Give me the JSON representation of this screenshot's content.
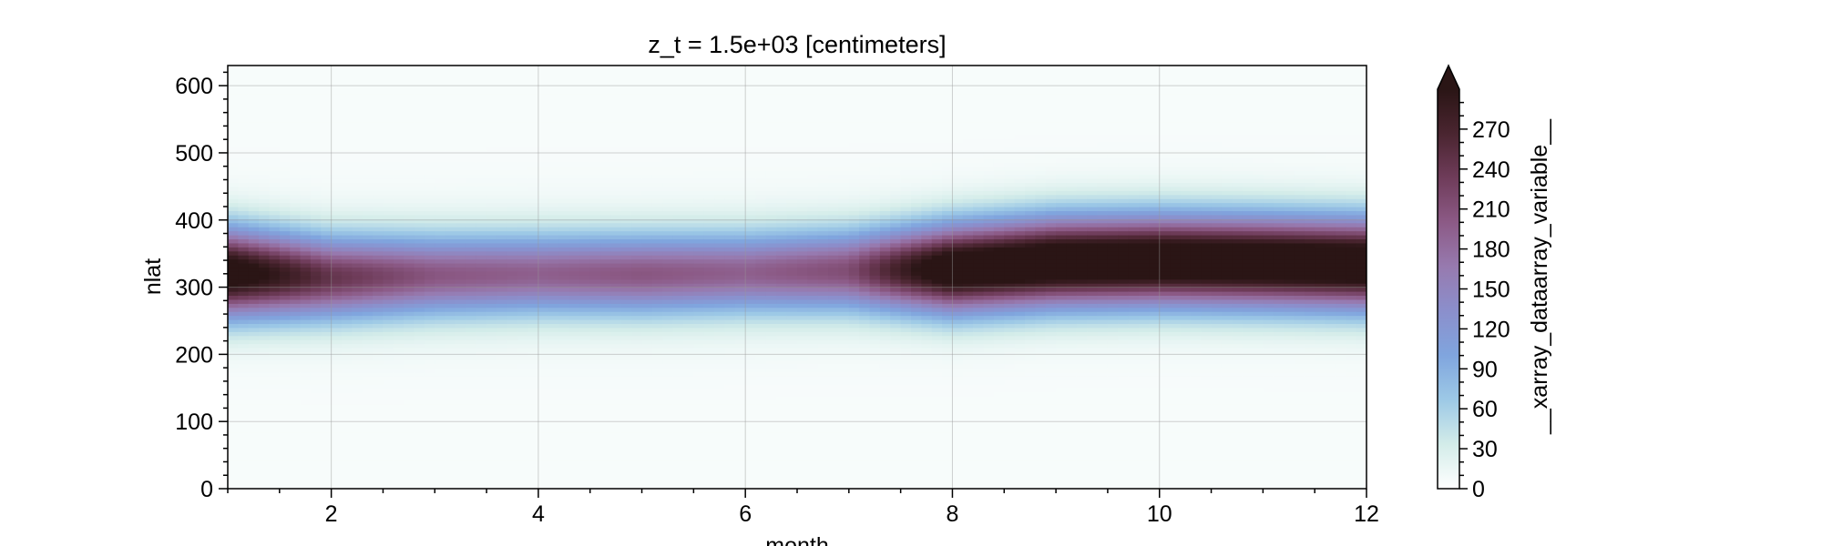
{
  "chart_data": {
    "type": "heatmap",
    "title": "z_t = 1.5e+03 [centimeters]",
    "xlabel": "month",
    "ylabel": "nlat",
    "xlim": [
      1,
      12
    ],
    "ylim": [
      0,
      630
    ],
    "x_ticks": [
      2,
      4,
      6,
      8,
      10,
      12
    ],
    "y_ticks": [
      0,
      100,
      200,
      300,
      400,
      500,
      600
    ],
    "grid": true,
    "colorbar": {
      "label": "__xarray_dataarray_variable__",
      "min": 0,
      "max": 300,
      "extend": "max",
      "ticks": [
        0,
        30,
        60,
        90,
        120,
        150,
        180,
        210,
        240,
        270
      ],
      "colors": [
        "#ffffff",
        "#d3ece9",
        "#9dc9e6",
        "#80a5de",
        "#8b8fcc",
        "#977aaf",
        "#8c5a86",
        "#6f3c5a",
        "#4a2530",
        "#2a1515"
      ]
    },
    "band": {
      "description_values": [
        {
          "month": 1,
          "center": 322,
          "peak": 280
        },
        {
          "month": 2,
          "center": 315,
          "peak": 190
        },
        {
          "month": 3,
          "center": 318,
          "peak": 150
        },
        {
          "month": 4,
          "center": 320,
          "peak": 140
        },
        {
          "month": 5,
          "center": 320,
          "peak": 150
        },
        {
          "month": 6,
          "center": 322,
          "peak": 140
        },
        {
          "month": 7,
          "center": 325,
          "peak": 160
        },
        {
          "month": 8,
          "center": 328,
          "peak": 290
        },
        {
          "month": 9,
          "center": 338,
          "peak": 300
        },
        {
          "month": 10,
          "center": 340,
          "peak": 300
        },
        {
          "month": 11,
          "center": 338,
          "peak": 300
        },
        {
          "month": 12,
          "center": 335,
          "peak": 300
        }
      ]
    }
  }
}
